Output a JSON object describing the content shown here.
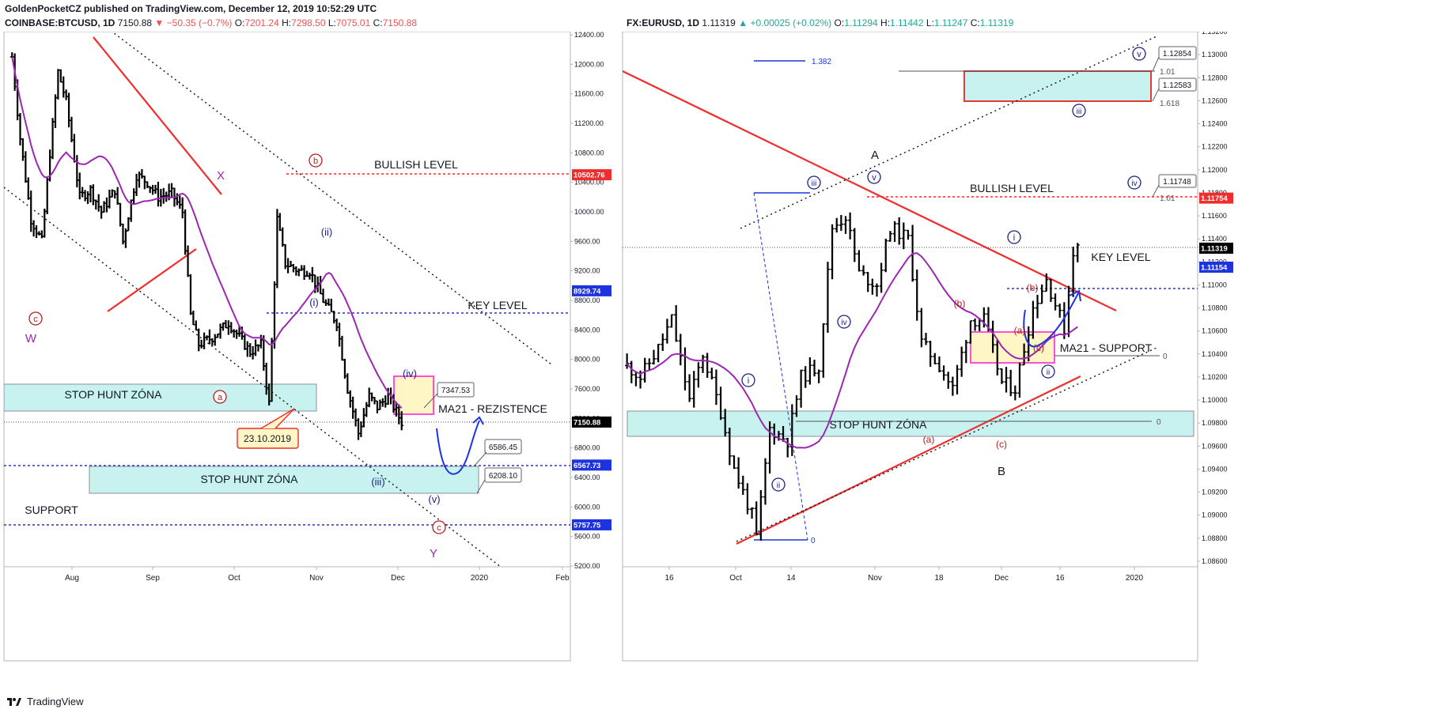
{
  "header": {
    "author_line": "GoldenPocketCZ published on TradingView.com, December 12, 2019 10:52:29 UTC",
    "left": {
      "symbol": "COINBASE:BTCUSD, 1D",
      "last": "7150.88",
      "change": "−50.35 (−0.7%)",
      "o_label": "O:",
      "o": "7201.24",
      "h_label": "H:",
      "h": "7298.50",
      "l_label": "L:",
      "l": "7075.01",
      "c_label": "C:",
      "c": "7150.88"
    },
    "right": {
      "symbol": "FX:EURUSD, 1D",
      "last": "1.11319",
      "change": "+0.00025 (+0.02%)",
      "o_label": "O:",
      "o": "1.11294",
      "h_label": "H:",
      "h": "1.11442",
      "l_label": "L:",
      "l": "1.11247",
      "c_label": "C:",
      "c": "1.11319"
    }
  },
  "footer": {
    "brand": "TradingView"
  },
  "colors": {
    "up_candle": "#000000",
    "ma21": "#9c27b0",
    "trend_red": "#f02c2c",
    "level_blue": "#1e33e0",
    "level_red": "#f02c2c",
    "zone_fill": "#c8f2ef",
    "pink_box": "#ff4fd8",
    "wave_red": "#b71c1c",
    "wave_blue": "#1a237e"
  },
  "chart_data": [
    {
      "type": "ohlc",
      "symbol": "COINBASE:BTCUSD",
      "timeframe": "1D",
      "y_ticks": [
        "12400.00",
        "12000.00",
        "11600.00",
        "11200.00",
        "10800.00",
        "10400.00",
        "10000.00",
        "9600.00",
        "9200.00",
        "8800.00",
        "8400.00",
        "8000.00",
        "7600.00",
        "7200.00",
        "6800.00",
        "6400.00",
        "6000.00",
        "5600.00",
        "5200.00"
      ],
      "ylim": [
        5200,
        12400
      ],
      "x_ticks": [
        "Aug",
        "Sep",
        "Oct",
        "Nov",
        "Dec",
        "2020",
        "Feb"
      ],
      "price_tags": [
        {
          "value": 10502.76,
          "text": "10502.76",
          "color": "#f02c2c"
        },
        {
          "value": 8929.74,
          "text": "8929.74",
          "color": "#1e33e0"
        },
        {
          "value": 7150.88,
          "text": "7150.88",
          "color": "#000000"
        },
        {
          "value": 6567.73,
          "text": "6567.73",
          "color": "#1e33e0"
        },
        {
          "value": 5757.75,
          "text": "5757.75",
          "color": "#1e33e0"
        }
      ],
      "callouts": [
        {
          "text": "7347.53"
        },
        {
          "text": "6586.45"
        },
        {
          "text": "6208.10"
        }
      ],
      "date_callout": "23.10.2019",
      "labels": {
        "bullish": "BULLISH LEVEL",
        "key": "KEY LEVEL",
        "stop_hunt_1": "STOP HUNT ZÓNA",
        "stop_hunt_2": "STOP HUNT ZÓNA",
        "support": "SUPPORT",
        "ma21": "MA21 - REZISTENCE",
        "W": "W",
        "X": "X",
        "Y": "Y"
      },
      "waves": [
        {
          "text": "c",
          "style": "circled-red"
        },
        {
          "text": "a",
          "style": "circled-red"
        },
        {
          "text": "b",
          "style": "circled-red"
        },
        {
          "text": "c",
          "style": "circled-red"
        },
        {
          "text": "(i)",
          "style": "blue"
        },
        {
          "text": "(ii)",
          "style": "blue"
        },
        {
          "text": "(iii)",
          "style": "blue"
        },
        {
          "text": "(iv)",
          "style": "blue"
        },
        {
          "text": "(v)",
          "style": "blue"
        }
      ],
      "price_path": [
        [
          "Jul 20",
          12100
        ],
        [
          "Jul 23",
          11000
        ],
        [
          "Jul 27",
          9900
        ],
        [
          "Jul 31",
          9600
        ],
        [
          "Aug 3",
          10800
        ],
        [
          "Aug 6",
          11900
        ],
        [
          "Aug 9",
          11500
        ],
        [
          "Aug 14",
          10200
        ],
        [
          "Aug 18",
          10300
        ],
        [
          "Aug 22",
          10000
        ],
        [
          "Aug 27",
          10300
        ],
        [
          "Aug 30",
          9600
        ],
        [
          "Sep 4",
          10500
        ],
        [
          "Sep 8",
          10400
        ],
        [
          "Sep 12",
          10200
        ],
        [
          "Sep 17",
          10250
        ],
        [
          "Sep 21",
          10000
        ],
        [
          "Sep 24",
          8600
        ],
        [
          "Sep 27",
          8200
        ],
        [
          "Oct 2",
          8300
        ],
        [
          "Oct 8",
          8500
        ],
        [
          "Oct 12",
          8300
        ],
        [
          "Oct 16",
          8100
        ],
        [
          "Oct 20",
          8200
        ],
        [
          "Oct 23",
          7400
        ],
        [
          "Oct 26",
          9900
        ],
        [
          "Oct 29",
          9300
        ],
        [
          "Nov 3",
          9200
        ],
        [
          "Nov 7",
          9200
        ],
        [
          "Nov 12",
          8800
        ],
        [
          "Nov 17",
          8500
        ],
        [
          "Nov 21",
          7600
        ],
        [
          "Nov 25",
          7000
        ],
        [
          "Nov 29",
          7500
        ],
        [
          "Dec 2",
          7350
        ],
        [
          "Dec 6",
          7500
        ],
        [
          "Dec 11",
          7150
        ]
      ]
    },
    {
      "type": "ohlc",
      "symbol": "FX:EURUSD",
      "timeframe": "1D",
      "y_ticks": [
        "1.13200",
        "1.13000",
        "1.12800",
        "1.12600",
        "1.12400",
        "1.12200",
        "1.12000",
        "1.11800",
        "1.11600",
        "1.11400",
        "1.11200",
        "1.11000",
        "1.10800",
        "1.10600",
        "1.10400",
        "1.10200",
        "1.10000",
        "1.09800",
        "1.09600",
        "1.09400",
        "1.09200",
        "1.09000",
        "1.08800",
        "1.08600"
      ],
      "ylim": [
        1.086,
        1.132
      ],
      "x_ticks": [
        "16",
        "Oct",
        "14",
        "Nov",
        "18",
        "Dec",
        "16",
        "2020"
      ],
      "price_tags": [
        {
          "value": 1.11754,
          "text": "1.11754",
          "color": "#f02c2c"
        },
        {
          "value": 1.11319,
          "text": "1.11319",
          "color": "#000000"
        },
        {
          "value": 1.11154,
          "text": "1.11154",
          "color": "#1e33e0"
        }
      ],
      "callouts": [
        {
          "text": "1.12854"
        },
        {
          "text": "1.12583"
        },
        {
          "text": "1.11748"
        }
      ],
      "fib_labels": [
        "1.382",
        "1.01",
        "1.618",
        "1.01",
        "0",
        "0",
        "0"
      ],
      "labels": {
        "bullish": "BULLISH LEVEL",
        "key": "KEY LEVEL",
        "stop_hunt": "STOP HUNT ZÓNA",
        "ma21": "MA21 - SUPPORT",
        "A": "A",
        "B": "B"
      },
      "waves": [
        {
          "text": "i",
          "style": "circled-blue"
        },
        {
          "text": "ii",
          "style": "circled-blue"
        },
        {
          "text": "iii",
          "style": "circled-blue"
        },
        {
          "text": "iv",
          "style": "circled-blue"
        },
        {
          "text": "v",
          "style": "circled-blue"
        },
        {
          "text": "i",
          "style": "circled-blue"
        },
        {
          "text": "ii",
          "style": "circled-blue"
        },
        {
          "text": "iii",
          "style": "circled-blue"
        },
        {
          "text": "iv",
          "style": "circled-blue"
        },
        {
          "text": "v",
          "style": "circled-blue"
        },
        {
          "text": "(a)",
          "style": "red"
        },
        {
          "text": "(b)",
          "style": "red"
        },
        {
          "text": "(c)",
          "style": "red"
        },
        {
          "text": "(a)",
          "style": "red"
        },
        {
          "text": "(b)",
          "style": "red"
        },
        {
          "text": "(c)",
          "style": "red"
        }
      ],
      "price_path": [
        [
          "Sep 2",
          1.103
        ],
        [
          "Sep 5",
          1.102
        ],
        [
          "Sep 9",
          1.1045
        ],
        [
          "Sep 12",
          1.107
        ],
        [
          "Sep 16",
          1.1
        ],
        [
          "Sep 19",
          1.104
        ],
        [
          "Sep 23",
          1.099
        ],
        [
          "Sep 26",
          1.094
        ],
        [
          "Sep 30",
          1.09
        ],
        [
          "Oct 1",
          1.088
        ],
        [
          "Oct 4",
          1.0975
        ],
        [
          "Oct 8",
          1.0965
        ],
        [
          "Oct 11",
          1.102
        ],
        [
          "Oct 15",
          1.103
        ],
        [
          "Oct 18",
          1.115
        ],
        [
          "Oct 21",
          1.116
        ],
        [
          "Oct 24",
          1.111
        ],
        [
          "Oct 28",
          1.11
        ],
        [
          "Oct 31",
          1.115
        ],
        [
          "Nov 4",
          1.114
        ],
        [
          "Nov 7",
          1.105
        ],
        [
          "Nov 11",
          1.103
        ],
        [
          "Nov 14",
          1.101
        ],
        [
          "Nov 18",
          1.107
        ],
        [
          "Nov 21",
          1.107
        ],
        [
          "Nov 25",
          1.1015
        ],
        [
          "Nov 28",
          1.101
        ],
        [
          "Dec 2",
          1.108
        ],
        [
          "Dec 5",
          1.1105
        ],
        [
          "Dec 9",
          1.1062
        ],
        [
          "Dec 11",
          1.113
        ],
        [
          "Dec 12",
          1.1132
        ]
      ]
    }
  ]
}
